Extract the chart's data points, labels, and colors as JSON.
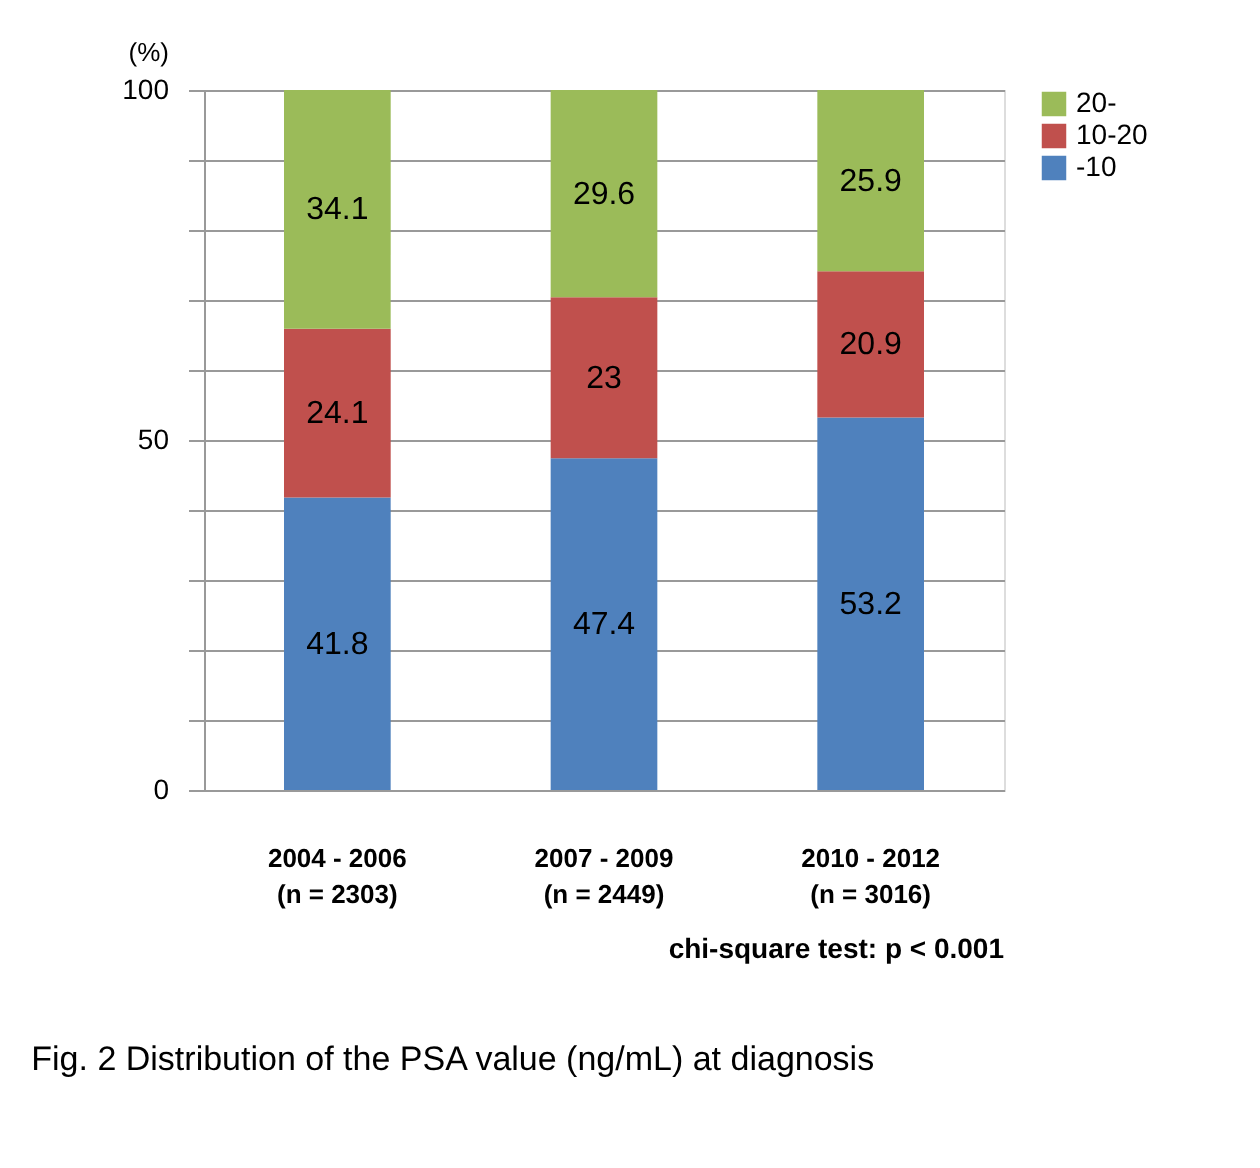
{
  "chart_data": {
    "type": "bar",
    "title": "Fig. 2 Distribution of the PSA value (ng/mL) at diagnosis",
    "ylabel": "(%)",
    "categories": [
      "2004 - 2006\n(n = 2303)",
      "2007 - 2009\n(n = 2449)",
      "2010 - 2012\n(n = 3016)"
    ],
    "series": [
      {
        "name": "-10",
        "color": "#4f81bd",
        "values": [
          41.8,
          47.4,
          53.2
        ]
      },
      {
        "name": "10-20",
        "color": "#c0504d",
        "values": [
          24.1,
          23,
          20.9
        ]
      },
      {
        "name": "20-",
        "color": "#9bbb59",
        "values": [
          34.1,
          29.6,
          25.9
        ]
      }
    ],
    "stacked": true,
    "data_labels": true,
    "ylim": [
      0,
      100
    ],
    "yticks": [
      0,
      {
        "value": 10,
        "label": null
      },
      {
        "value": 20,
        "label": null
      },
      {
        "value": 30,
        "label": null
      },
      {
        "value": 40,
        "label": null
      },
      50,
      {
        "value": 60,
        "label": null
      },
      {
        "value": 70,
        "label": null
      },
      {
        "value": 80,
        "label": null
      },
      {
        "value": 90,
        "label": null
      },
      100
    ],
    "grid": "y",
    "legend": "right",
    "annotations": [
      "chi-square test:   p < 0.001"
    ]
  }
}
